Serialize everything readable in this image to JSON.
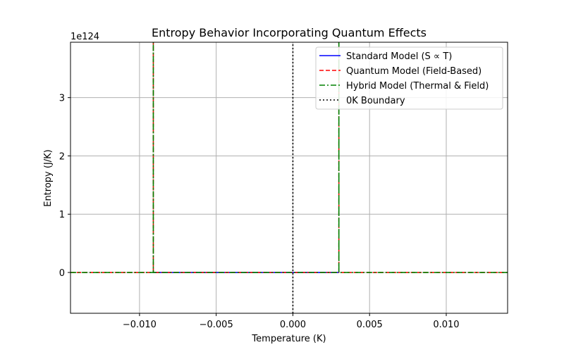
{
  "chart_data": {
    "type": "line",
    "title": "Entropy Behavior Incorporating Quantum Effects",
    "xlabel": "Temperature (K)",
    "ylabel": "Entropy (J/K)",
    "y_offset_label": "1e124",
    "xlim": [
      -0.0145,
      0.014
    ],
    "ylim": [
      -0.7,
      3.95
    ],
    "y_unit_multiplier": 1e+124,
    "x_ticks": [
      -0.01,
      -0.005,
      0.0,
      0.005,
      0.01
    ],
    "x_tick_labels": [
      "−0.010",
      "−0.005",
      "0.000",
      "0.005",
      "0.010"
    ],
    "y_ticks": [
      0,
      1,
      2,
      3
    ],
    "y_tick_labels": [
      "0",
      "1",
      "2",
      "3"
    ],
    "grid": true,
    "legend_position": "top-right",
    "series": [
      {
        "name": "Standard Model (S ∝ T)",
        "color": "#0000ff",
        "style": "solid",
        "x": [
          -0.0091,
          0.0,
          0.003
        ],
        "y": [
          0,
          0,
          0
        ]
      },
      {
        "name": "Quantum Model (Field-Based)",
        "color": "#ff0000",
        "style": "dashed",
        "x": [
          -0.0145,
          -0.0091,
          -0.0091,
          -0.0091,
          0.003,
          0.003,
          0.003,
          0.014
        ],
        "y": [
          0,
          0,
          3.95,
          0,
          0,
          3.95,
          0,
          0
        ]
      },
      {
        "name": "Hybrid Model (Thermal & Field)",
        "color": "#008000",
        "style": "dashdot",
        "x": [
          -0.0145,
          -0.0091,
          -0.0091,
          -0.0091,
          0.003,
          0.003,
          0.003,
          0.014
        ],
        "y": [
          0,
          0,
          3.95,
          0,
          0,
          3.95,
          0,
          0
        ]
      },
      {
        "name": "0K Boundary",
        "color": "#000000",
        "style": "dotted",
        "x": [
          0.0,
          0.0
        ],
        "y": [
          -0.7,
          3.95
        ]
      }
    ]
  }
}
